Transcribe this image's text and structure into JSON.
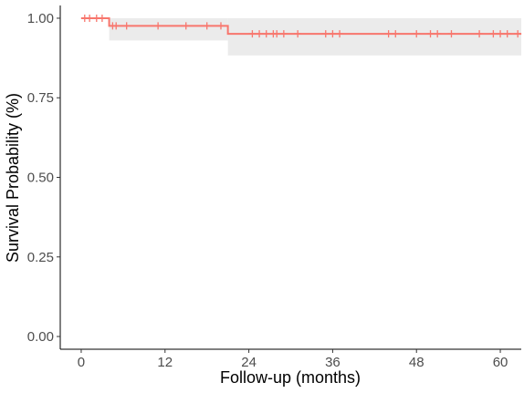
{
  "chart_data": {
    "type": "line",
    "title": "",
    "xlabel": "Follow-up (months)",
    "ylabel": "Survival Probability (%)",
    "xlim": [
      -3,
      63
    ],
    "ylim": [
      -0.04,
      1.04
    ],
    "x_ticks": [
      0,
      12,
      24,
      36,
      48,
      60
    ],
    "x_tick_labels": [
      "0",
      "12",
      "24",
      "36",
      "48",
      "60"
    ],
    "y_ticks": [
      0,
      0.25,
      0.5,
      0.75,
      1.0
    ],
    "y_tick_labels": [
      "0.00",
      "0.25",
      "0.50",
      "0.75",
      "1.00"
    ],
    "grid": false,
    "legend": "none",
    "series": [
      {
        "color": "#f8766d",
        "step": [
          {
            "x": 0,
            "y": 1.0
          },
          {
            "x": 4,
            "y": 0.976
          },
          {
            "x": 21,
            "y": 0.951
          },
          {
            "x": 63,
            "y": 0.951
          }
        ],
        "confidence_band": [
          {
            "x": 4,
            "lower": 0.93,
            "upper": 1.0
          },
          {
            "x": 21,
            "lower": 0.883,
            "upper": 1.0
          },
          {
            "x": 63,
            "lower": 0.883,
            "upper": 1.0
          }
        ],
        "band_color": "#ebebeb",
        "censor_times": [
          0.5,
          1.2,
          2.2,
          3,
          4.5,
          5,
          6.5,
          11,
          15,
          18,
          20,
          24.5,
          25.5,
          26.5,
          27.5,
          28,
          29,
          31,
          35,
          36,
          37,
          44,
          45,
          48,
          50,
          51,
          53,
          57,
          59,
          60,
          61,
          62.5
        ]
      }
    ]
  }
}
